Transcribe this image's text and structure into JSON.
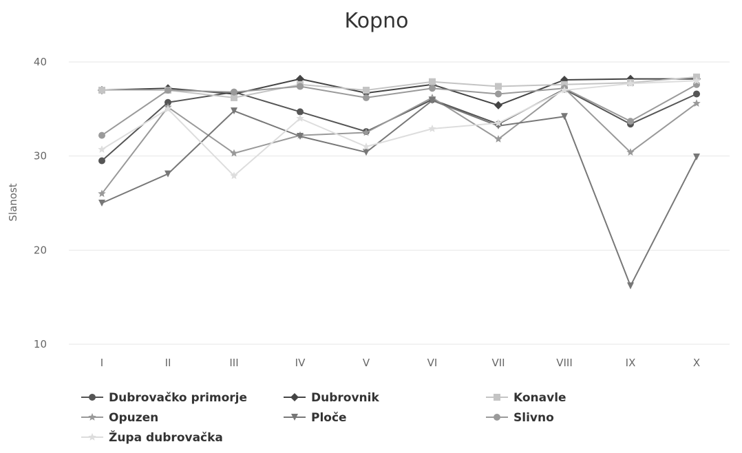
{
  "chart_data": {
    "type": "line",
    "title": "Kopno",
    "ylabel": "Slanost",
    "xlabel": "",
    "ylim": [
      10,
      40
    ],
    "yticks": [
      10,
      20,
      30,
      40
    ],
    "categories": [
      "I",
      "II",
      "III",
      "IV",
      "V",
      "VI",
      "VII",
      "VIII",
      "IX",
      "X"
    ],
    "grid": "horizontal",
    "legend_position": "bottom",
    "series": [
      {
        "name": "Dubrovačko primorje",
        "color": "#555555",
        "marker": "circle",
        "values": [
          29.5,
          35.7,
          36.8,
          34.7,
          32.6,
          36.0,
          33.4,
          37.1,
          33.4,
          36.6
        ]
      },
      {
        "name": "Dubrovnik",
        "color": "#444444",
        "marker": "diamond",
        "values": [
          37.0,
          37.2,
          36.6,
          38.2,
          36.7,
          37.6,
          35.4,
          38.1,
          38.2,
          38.2
        ]
      },
      {
        "name": "Konavle",
        "color": "#c4c4c4",
        "marker": "square",
        "values": [
          37.0,
          37.0,
          36.2,
          37.6,
          37.0,
          37.9,
          37.4,
          37.6,
          37.8,
          38.4
        ]
      },
      {
        "name": "Opuzen",
        "color": "#999999",
        "marker": "star",
        "values": [
          26.0,
          35.2,
          30.3,
          32.2,
          32.5,
          36.2,
          31.8,
          37.2,
          30.4,
          35.6
        ]
      },
      {
        "name": "Ploče",
        "color": "#777777",
        "marker": "triangle-down",
        "values": [
          25.0,
          28.1,
          34.8,
          32.1,
          30.4,
          35.9,
          33.2,
          34.2,
          16.2,
          29.9
        ]
      },
      {
        "name": "Slivno",
        "color": "#9a9a9a",
        "marker": "circle",
        "values": [
          32.2,
          37.0,
          36.8,
          37.4,
          36.2,
          37.2,
          36.6,
          37.2,
          33.7,
          37.6
        ]
      },
      {
        "name": "Župa dubrovačka",
        "color": "#dddddd",
        "marker": "star",
        "values": [
          30.7,
          35.0,
          27.9,
          34.0,
          31.0,
          32.9,
          33.5,
          37.0,
          37.7,
          38.0
        ]
      }
    ]
  }
}
